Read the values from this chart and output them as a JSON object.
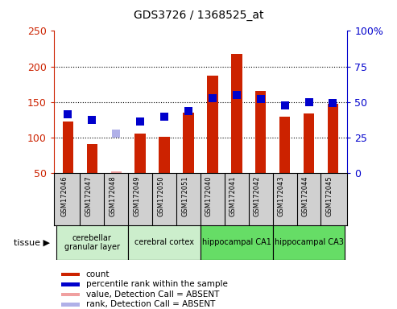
{
  "title": "GDS3726 / 1368525_at",
  "samples": [
    "GSM172046",
    "GSM172047",
    "GSM172048",
    "GSM172049",
    "GSM172050",
    "GSM172051",
    "GSM172040",
    "GSM172041",
    "GSM172042",
    "GSM172043",
    "GSM172044",
    "GSM172045"
  ],
  "count_values": [
    122,
    91,
    null,
    105,
    101,
    135,
    187,
    218,
    166,
    129,
    134,
    147
  ],
  "count_absent": [
    null,
    null,
    52,
    null,
    null,
    null,
    null,
    null,
    null,
    null,
    null,
    null
  ],
  "rank_values": [
    133,
    125,
    null,
    122,
    129,
    137,
    155,
    160,
    154,
    145,
    150,
    148
  ],
  "rank_absent": [
    null,
    null,
    105,
    null,
    null,
    null,
    null,
    null,
    null,
    null,
    null,
    null
  ],
  "ylim_left": [
    50,
    250
  ],
  "ylim_right": [
    0,
    100
  ],
  "yticks_left": [
    50,
    100,
    150,
    200,
    250
  ],
  "yticks_right": [
    0,
    25,
    50,
    75,
    100
  ],
  "yticklabels_right": [
    "0",
    "25",
    "50",
    "75",
    "100%"
  ],
  "bar_color": "#cc2200",
  "bar_absent_color": "#f0a0a0",
  "rank_color": "#0000cc",
  "rank_absent_color": "#b0b0e8",
  "tissue_groups": [
    {
      "label": "cerebellar\ngranular layer",
      "start": 0,
      "end": 3,
      "color": "#cceecc"
    },
    {
      "label": "cerebral cortex",
      "start": 3,
      "end": 6,
      "color": "#cceecc"
    },
    {
      "label": "hippocampal CA1",
      "start": 6,
      "end": 9,
      "color": "#66dd66"
    },
    {
      "label": "hippocampal CA3",
      "start": 9,
      "end": 12,
      "color": "#66dd66"
    }
  ],
  "legend_items": [
    {
      "label": "count",
      "color": "#cc2200"
    },
    {
      "label": "percentile rank within the sample",
      "color": "#0000cc"
    },
    {
      "label": "value, Detection Call = ABSENT",
      "color": "#f0a0a0"
    },
    {
      "label": "rank, Detection Call = ABSENT",
      "color": "#b0b0e8"
    }
  ],
  "bar_width": 0.45,
  "rank_marker_size": 45,
  "left_axis_color": "#cc2200",
  "right_axis_color": "#0000cc",
  "sample_box_color": "#d0d0d0",
  "grid_yticks": [
    100,
    150,
    200
  ]
}
